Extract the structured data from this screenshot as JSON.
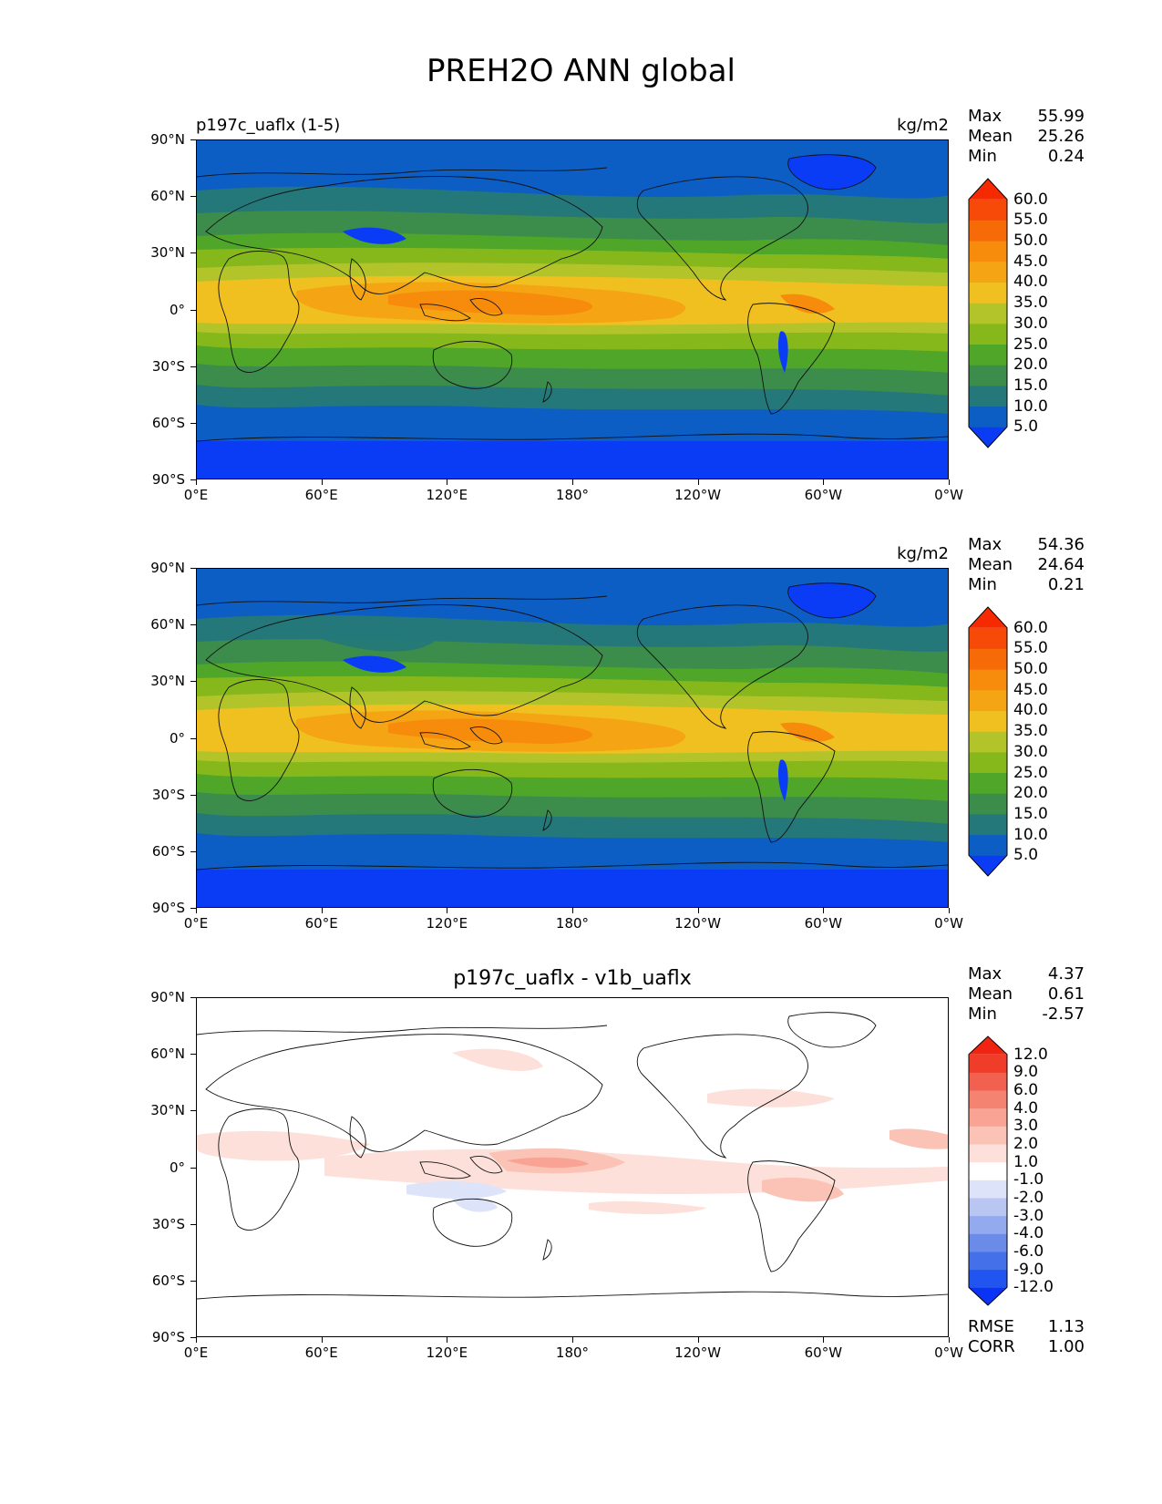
{
  "title": "PREH2O ANN global",
  "panels": [
    {
      "title_left": "p197c_uaflx (1-5)",
      "title_center": "",
      "units": "kg/m2",
      "stats": [
        [
          "Max",
          "55.99"
        ],
        [
          "Mean",
          "25.26"
        ],
        [
          "Min",
          "0.24"
        ]
      ],
      "colorbar_labels": [
        "60.0",
        "55.0",
        "50.0",
        "45.0",
        "40.0",
        "35.0",
        "30.0",
        "25.0",
        "20.0",
        "15.0",
        "10.0",
        "5.0"
      ],
      "colorbar_colors": [
        "#0b3cf5",
        "#0c5ec4",
        "#24787a",
        "#3c8c4c",
        "#4fa628",
        "#86b81c",
        "#b2c42a",
        "#f0c020",
        "#f5a414",
        "#f78b0c",
        "#f76a08",
        "#f74a08",
        "#f52a00"
      ]
    },
    {
      "title_left": "",
      "title_center": "",
      "units": "kg/m2",
      "stats": [
        [
          "Max",
          "54.36"
        ],
        [
          "Mean",
          "24.64"
        ],
        [
          "Min",
          "0.21"
        ]
      ],
      "colorbar_labels": [
        "60.0",
        "55.0",
        "50.0",
        "45.0",
        "40.0",
        "35.0",
        "30.0",
        "25.0",
        "20.0",
        "15.0",
        "10.0",
        "5.0"
      ],
      "colorbar_colors": [
        "#0b3cf5",
        "#0c5ec4",
        "#24787a",
        "#3c8c4c",
        "#4fa628",
        "#86b81c",
        "#b2c42a",
        "#f0c020",
        "#f5a414",
        "#f78b0c",
        "#f76a08",
        "#f74a08",
        "#f52a00"
      ]
    },
    {
      "title_left": "",
      "title_center": "p197c_uaflx - v1b_uaflx",
      "units": "",
      "stats": [
        [
          "Max",
          "4.37"
        ],
        [
          "Mean",
          "0.61"
        ],
        [
          "Min",
          "-2.57"
        ]
      ],
      "colorbar_labels": [
        "12.0",
        "9.0",
        "6.0",
        "4.0",
        "3.0",
        "2.0",
        "1.0",
        "-1.0",
        "-2.0",
        "-3.0",
        "-4.0",
        "-6.0",
        "-9.0",
        "-12.0"
      ],
      "colorbar_colors": [
        "#0a33f5",
        "#2255f0",
        "#4470ea",
        "#6a8ce8",
        "#93aaee",
        "#b9c6f2",
        "#dde3f8",
        "#ffffff",
        "#fde0da",
        "#fbc3b6",
        "#f8a394",
        "#f58372",
        "#f26150",
        "#f03d2a",
        "#f02410"
      ],
      "extra_stats": [
        [
          "RMSE",
          "1.13"
        ],
        [
          "CORR",
          "1.00"
        ]
      ]
    }
  ],
  "axes": {
    "yticks": [
      "90°N",
      "60°N",
      "30°N",
      "0°",
      "30°S",
      "60°S",
      "90°S"
    ],
    "xticks": [
      "0°E",
      "60°E",
      "120°E",
      "180°",
      "120°W",
      "60°W",
      "0°W"
    ]
  },
  "map_field_colors": {
    "polar": "#0b3cf5",
    "subpolar": "#0c5ec4",
    "mid": "#24787a",
    "midgreen": "#3c8c4c",
    "green": "#4fa628",
    "yellowgreen": "#86b81c",
    "olive": "#b2c42a",
    "yellow": "#f0c020",
    "orange": "#f5a414",
    "deeporange": "#f78b0c"
  }
}
